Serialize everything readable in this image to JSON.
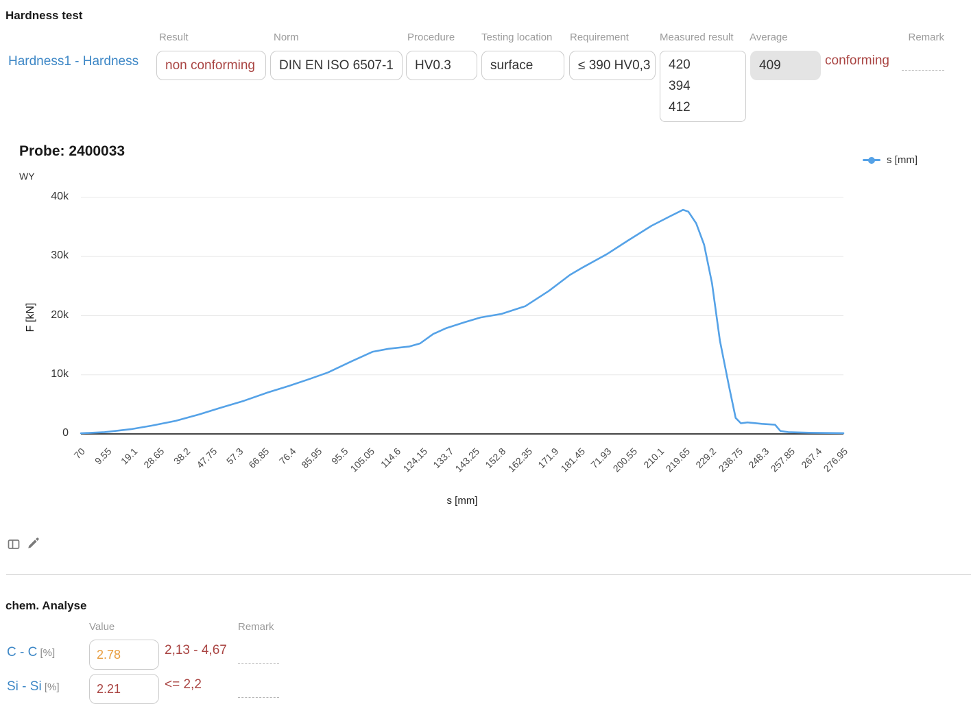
{
  "hardness": {
    "title": "Hardness test",
    "row_link": "Hardness1 - Hardness",
    "labels": {
      "result": "Result",
      "norm": "Norm",
      "procedure": "Procedure",
      "testing_location": "Testing location",
      "requirement": "Requirement",
      "measured_result": "Measured result",
      "average": "Average",
      "remark": "Remark"
    },
    "values": {
      "result": "non conforming",
      "norm": "DIN EN ISO 6507-1",
      "procedure": "HV0.3",
      "testing_location": "surface",
      "requirement": "≤ 390 HV0,3",
      "measured_results": [
        "420",
        "394",
        "412"
      ],
      "average": "409",
      "average_status": "conforming",
      "remark": ""
    }
  },
  "chart_data": {
    "type": "line",
    "title": "Probe: 2400033",
    "xlabel": "s [mm]",
    "ylabel": "F [kN]",
    "y_axis_secondary_label": "WY",
    "legend_position": "top-right",
    "grid": true,
    "ylim": [
      0,
      40000
    ],
    "y_ticks": [
      {
        "v": 0,
        "label": "0"
      },
      {
        "v": 10000,
        "label": "10k"
      },
      {
        "v": 20000,
        "label": "20k"
      },
      {
        "v": 30000,
        "label": "30k"
      },
      {
        "v": 40000,
        "label": "40k"
      }
    ],
    "x_tick_labels": [
      "70",
      "9.55",
      "19.1",
      "28.65",
      "38.2",
      "47.75",
      "57.3",
      "66.85",
      "76.4",
      "85.95",
      "95.5",
      "105.05",
      "114.6",
      "124.15",
      "133.7",
      "143.25",
      "152.8",
      "162.35",
      "171.9",
      "181.45",
      "71.93",
      "200.55",
      "210.1",
      "219.65",
      "229.2",
      "238.75",
      "248.3",
      "257.85",
      "267.4",
      "276.95"
    ],
    "series": [
      {
        "name": "s [mm]",
        "color": "#55a2e7",
        "points": [
          [
            0,
            100
          ],
          [
            0.9,
            300
          ],
          [
            1.9,
            800
          ],
          [
            2.7,
            1400
          ],
          [
            3.6,
            2200
          ],
          [
            4.5,
            3300
          ],
          [
            5.3,
            4400
          ],
          [
            6.2,
            5600
          ],
          [
            7.1,
            7000
          ],
          [
            7.9,
            8100
          ],
          [
            8.7,
            9300
          ],
          [
            9.4,
            10400
          ],
          [
            10.3,
            12300
          ],
          [
            11.1,
            13900
          ],
          [
            11.7,
            14400
          ],
          [
            12.5,
            14800
          ],
          [
            12.9,
            15300
          ],
          [
            13.4,
            16900
          ],
          [
            13.9,
            17900
          ],
          [
            14.6,
            18900
          ],
          [
            15.2,
            19700
          ],
          [
            16.0,
            20300
          ],
          [
            16.9,
            21600
          ],
          [
            17.8,
            24200
          ],
          [
            18.6,
            26900
          ],
          [
            19.1,
            28200
          ],
          [
            20.0,
            30400
          ],
          [
            20.8,
            32700
          ],
          [
            21.7,
            35200
          ],
          [
            22.4,
            36800
          ],
          [
            22.9,
            37900
          ],
          [
            23.1,
            37600
          ],
          [
            23.4,
            35600
          ],
          [
            23.7,
            32000
          ],
          [
            24.0,
            25500
          ],
          [
            24.3,
            15800
          ],
          [
            24.65,
            8000
          ],
          [
            24.9,
            2700
          ],
          [
            25.1,
            1800
          ],
          [
            25.35,
            1950
          ],
          [
            25.9,
            1700
          ],
          [
            26.4,
            1550
          ],
          [
            26.6,
            500
          ],
          [
            26.9,
            300
          ],
          [
            27.7,
            200
          ],
          [
            29,
            130
          ]
        ]
      }
    ]
  },
  "toolbar": {
    "icons": [
      "table-layout",
      "edit-pencil"
    ]
  },
  "chem": {
    "title": "chem. Analyse",
    "labels": {
      "value": "Value",
      "remark": "Remark"
    },
    "rows": [
      {
        "element": "C - C",
        "unit": "[%]",
        "value": "2.78",
        "value_color": "#e89c3c",
        "requirement": "2,13 - 4,67"
      },
      {
        "element": "Si - Si",
        "unit": "[%]",
        "value": "2.21",
        "value_color": "#a94442",
        "requirement": "<= 2,2"
      }
    ]
  },
  "colors": {
    "link_blue": "#3d87c6",
    "danger_red": "#a94442",
    "warning_orange": "#e89c3c",
    "line_blue": "#55a2e7",
    "label_gray": "#9b9b9b",
    "grid_gray": "#e8e8e8",
    "axis_dark": "#444444",
    "box_border": "#cccccc",
    "readonly_bg": "#e4e4e4"
  }
}
